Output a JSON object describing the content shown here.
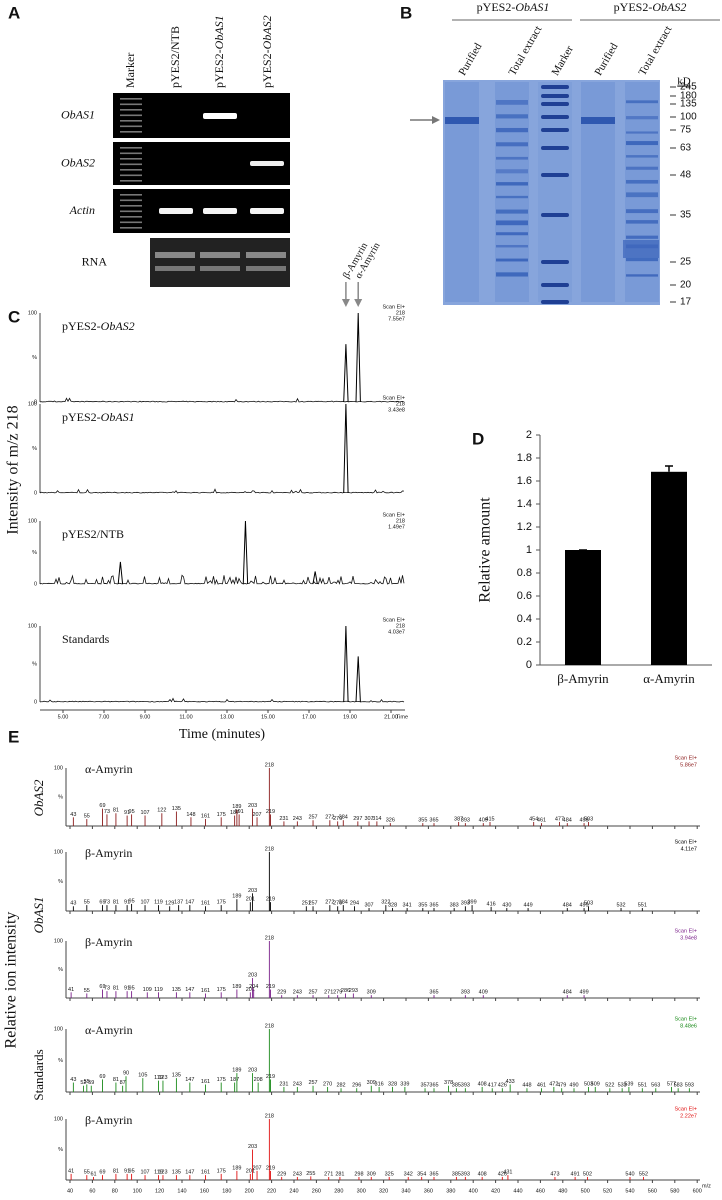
{
  "panel_a": {
    "letter": "A",
    "lanes": [
      [
        "Marker"
      ],
      [
        "pYES2/NTB"
      ],
      [
        "pYES2-",
        "ObAS1"
      ],
      [
        "pYES2-",
        "ObAS2"
      ]
    ],
    "rows": [
      "ObAS1",
      "ObAS2",
      "Actin",
      "RNA"
    ]
  },
  "panel_b": {
    "letter": "B",
    "groups": [
      [
        "pYES2-",
        "ObAS1"
      ],
      [
        "pYES2-",
        "ObAS2"
      ]
    ],
    "lanes": [
      "Purified",
      "Total extract",
      "Marker",
      "Purified",
      "Total extract"
    ],
    "unit": "kD",
    "sizes": [
      245,
      180,
      135,
      100,
      75,
      63,
      48,
      35,
      25,
      20,
      17
    ]
  },
  "panel_c": {
    "letter": "C",
    "y_label": "Intensity of m/z 218",
    "x_label": "Time (minutes)",
    "markers": [
      "β-Amyrin",
      "α-Amyrin"
    ],
    "xticks": [
      {
        "value": 5,
        "label": "5.00"
      },
      {
        "value": 7,
        "label": "7.00"
      },
      {
        "value": 9,
        "label": "9.00"
      },
      {
        "value": 11,
        "label": "11.00"
      },
      {
        "value": 13,
        "label": "13.00"
      },
      {
        "value": 15,
        "label": "15.00"
      },
      {
        "value": 17,
        "label": "17.00"
      },
      {
        "value": 19,
        "label": "19.00"
      },
      {
        "value": 21,
        "label": "21.00"
      }
    ],
    "x_end_label": "Time",
    "yticks": [
      0,
      100
    ],
    "y_mid_label": "%",
    "traces": [
      {
        "label": [
          "pYES2-",
          "ObAS2"
        ],
        "scan": "Scan EI+",
        "ion": 218,
        "scale": "7.55e7",
        "peaks": [
          [
            18.8,
            65
          ],
          [
            19.4,
            100
          ]
        ]
      },
      {
        "label": [
          "pYES2-",
          "ObAS1"
        ],
        "scan": "Scan EI+",
        "ion": 218,
        "scale": "3.43e8",
        "peaks": [
          [
            18.8,
            100
          ]
        ]
      },
      {
        "label": [
          "pYES2/NTB"
        ],
        "scan": "Scan EI+",
        "ion": 218,
        "scale": "1.49e7",
        "peaks": [
          [
            7.8,
            35
          ],
          [
            13.9,
            100
          ],
          [
            17.3,
            20
          ]
        ]
      },
      {
        "label": [
          "Standards"
        ],
        "scan": "Scan EI+",
        "ion": 218,
        "scale": "4.03e7",
        "peaks": [
          [
            18.8,
            100
          ],
          [
            19.4,
            60
          ]
        ]
      }
    ]
  },
  "chart_data": {
    "type": "bar",
    "letter": "D",
    "y_label": "Relative amount",
    "categories": [
      "β-Amyrin",
      "α-Amyrin"
    ],
    "values": [
      1,
      1.68
    ],
    "errors": [
      0,
      0.05
    ],
    "color": "#000000",
    "ylim": [
      0,
      2
    ],
    "yticks": [
      0,
      0.2,
      0.4,
      0.6,
      0.8,
      1,
      1.2,
      1.4,
      1.6,
      1.8,
      2
    ]
  },
  "panel_e": {
    "letter": "E",
    "y_label": "Relative ion intensity",
    "groups": [
      "ObAS2",
      "ObAS1",
      "Standards"
    ],
    "xticks": [
      40,
      60,
      80,
      100,
      120,
      140,
      160,
      180,
      200,
      220,
      240,
      260,
      280,
      300,
      320,
      340,
      360,
      380,
      400,
      420,
      440,
      460,
      480,
      500,
      520,
      540,
      560,
      580,
      600
    ],
    "x_end_label": "m/z",
    "yticks": [
      100
    ],
    "y_mid_label": "%",
    "spectra": [
      {
        "compound": "α-Amyrin",
        "scan": "Scan EI+",
        "scale": "5.86e7",
        "color": "#8b1a1a",
        "peaks": [
          [
            43,
            15
          ],
          [
            55,
            12
          ],
          [
            69,
            30
          ],
          [
            73,
            20
          ],
          [
            81,
            22
          ],
          [
            91,
            18
          ],
          [
            95,
            20
          ],
          [
            107,
            18
          ],
          [
            122,
            22
          ],
          [
            135,
            25
          ],
          [
            148,
            15
          ],
          [
            161,
            12
          ],
          [
            175,
            15
          ],
          [
            187,
            18
          ],
          [
            191,
            20
          ],
          [
            189,
            28
          ],
          [
            203,
            30
          ],
          [
            207,
            15
          ],
          [
            218,
            100
          ],
          [
            219,
            20
          ],
          [
            231,
            8
          ],
          [
            243,
            8
          ],
          [
            257,
            10
          ],
          [
            272,
            10
          ],
          [
            279,
            8
          ],
          [
            284,
            10
          ],
          [
            297,
            8
          ],
          [
            307,
            8
          ],
          [
            314,
            8
          ],
          [
            326,
            5
          ],
          [
            355,
            5
          ],
          [
            365,
            5
          ],
          [
            387,
            7
          ],
          [
            393,
            5
          ],
          [
            409,
            5
          ],
          [
            415,
            7
          ],
          [
            454,
            7
          ],
          [
            461,
            5
          ],
          [
            477,
            7
          ],
          [
            484,
            5
          ],
          [
            499,
            5
          ],
          [
            503,
            7
          ]
        ]
      },
      {
        "compound": "β-Amyrin",
        "scan": "Scan EI+",
        "scale": "4.11e7",
        "color": "#000000",
        "peaks": [
          [
            43,
            8
          ],
          [
            55,
            10
          ],
          [
            69,
            10
          ],
          [
            73,
            10
          ],
          [
            81,
            10
          ],
          [
            91,
            10
          ],
          [
            95,
            12
          ],
          [
            107,
            10
          ],
          [
            119,
            10
          ],
          [
            129,
            8
          ],
          [
            137,
            10
          ],
          [
            147,
            10
          ],
          [
            161,
            8
          ],
          [
            175,
            10
          ],
          [
            189,
            20
          ],
          [
            201,
            15
          ],
          [
            203,
            30
          ],
          [
            218,
            100
          ],
          [
            219,
            15
          ],
          [
            251,
            8
          ],
          [
            257,
            8
          ],
          [
            272,
            10
          ],
          [
            279,
            8
          ],
          [
            284,
            10
          ],
          [
            294,
            8
          ],
          [
            307,
            5
          ],
          [
            322,
            10
          ],
          [
            328,
            5
          ],
          [
            341,
            5
          ],
          [
            355,
            5
          ],
          [
            365,
            5
          ],
          [
            383,
            5
          ],
          [
            393,
            8
          ],
          [
            399,
            10
          ],
          [
            416,
            7
          ],
          [
            430,
            5
          ],
          [
            449,
            5
          ],
          [
            484,
            5
          ],
          [
            499,
            5
          ],
          [
            503,
            8
          ],
          [
            532,
            5
          ],
          [
            551,
            5
          ]
        ]
      },
      {
        "compound": "β-Amyrin",
        "scan": "Scan EI+",
        "scale": "3.94e8",
        "color": "#7a1f8a",
        "peaks": [
          [
            41,
            10
          ],
          [
            55,
            8
          ],
          [
            69,
            15
          ],
          [
            73,
            12
          ],
          [
            81,
            12
          ],
          [
            91,
            12
          ],
          [
            95,
            12
          ],
          [
            109,
            10
          ],
          [
            119,
            10
          ],
          [
            135,
            10
          ],
          [
            147,
            10
          ],
          [
            161,
            8
          ],
          [
            175,
            10
          ],
          [
            189,
            15
          ],
          [
            201,
            10
          ],
          [
            203,
            35
          ],
          [
            204,
            15
          ],
          [
            218,
            100
          ],
          [
            219,
            15
          ],
          [
            229,
            5
          ],
          [
            243,
            5
          ],
          [
            257,
            5
          ],
          [
            271,
            5
          ],
          [
            279,
            5
          ],
          [
            286,
            8
          ],
          [
            293,
            8
          ],
          [
            309,
            5
          ],
          [
            365,
            5
          ],
          [
            393,
            5
          ],
          [
            409,
            5
          ],
          [
            484,
            5
          ],
          [
            499,
            5
          ]
        ]
      },
      {
        "compound": "α-Amyrin",
        "scan": "Scan EI+",
        "scale": "8.48e6",
        "color": "#1a8a1a",
        "peaks": [
          [
            43,
            15
          ],
          [
            52,
            10
          ],
          [
            55,
            12
          ],
          [
            59,
            10
          ],
          [
            69,
            20
          ],
          [
            81,
            15
          ],
          [
            87,
            10
          ],
          [
            90,
            25
          ],
          [
            105,
            22
          ],
          [
            119,
            18
          ],
          [
            123,
            18
          ],
          [
            135,
            22
          ],
          [
            147,
            15
          ],
          [
            161,
            12
          ],
          [
            175,
            15
          ],
          [
            187,
            15
          ],
          [
            189,
            30
          ],
          [
            203,
            30
          ],
          [
            208,
            15
          ],
          [
            218,
            100
          ],
          [
            219,
            20
          ],
          [
            231,
            8
          ],
          [
            243,
            8
          ],
          [
            257,
            10
          ],
          [
            270,
            8
          ],
          [
            282,
            6
          ],
          [
            296,
            6
          ],
          [
            309,
            10
          ],
          [
            316,
            8
          ],
          [
            328,
            8
          ],
          [
            339,
            8
          ],
          [
            357,
            6
          ],
          [
            365,
            6
          ],
          [
            378,
            10
          ],
          [
            385,
            6
          ],
          [
            393,
            6
          ],
          [
            408,
            8
          ],
          [
            417,
            6
          ],
          [
            426,
            6
          ],
          [
            433,
            12
          ],
          [
            448,
            6
          ],
          [
            461,
            6
          ],
          [
            472,
            8
          ],
          [
            479,
            6
          ],
          [
            490,
            6
          ],
          [
            503,
            8
          ],
          [
            509,
            8
          ],
          [
            522,
            6
          ],
          [
            533,
            6
          ],
          [
            539,
            8
          ],
          [
            551,
            6
          ],
          [
            563,
            6
          ],
          [
            577,
            8
          ],
          [
            583,
            6
          ],
          [
            593,
            6
          ]
        ]
      },
      {
        "compound": "β-Amyrin",
        "scan": "Scan EI+",
        "scale": "2.22e7",
        "color": "#e01010",
        "peaks": [
          [
            41,
            10
          ],
          [
            55,
            8
          ],
          [
            61,
            5
          ],
          [
            69,
            8
          ],
          [
            81,
            10
          ],
          [
            91,
            10
          ],
          [
            95,
            10
          ],
          [
            107,
            8
          ],
          [
            119,
            8
          ],
          [
            123,
            8
          ],
          [
            135,
            8
          ],
          [
            147,
            8
          ],
          [
            161,
            8
          ],
          [
            175,
            10
          ],
          [
            189,
            15
          ],
          [
            201,
            10
          ],
          [
            203,
            50
          ],
          [
            207,
            15
          ],
          [
            218,
            100
          ],
          [
            219,
            15
          ],
          [
            229,
            5
          ],
          [
            243,
            5
          ],
          [
            255,
            6
          ],
          [
            271,
            5
          ],
          [
            281,
            5
          ],
          [
            298,
            5
          ],
          [
            309,
            5
          ],
          [
            325,
            5
          ],
          [
            342,
            5
          ],
          [
            354,
            5
          ],
          [
            365,
            5
          ],
          [
            385,
            5
          ],
          [
            393,
            5
          ],
          [
            408,
            5
          ],
          [
            426,
            5
          ],
          [
            431,
            8
          ],
          [
            473,
            5
          ],
          [
            491,
            5
          ],
          [
            502,
            5
          ],
          [
            540,
            5
          ],
          [
            552,
            5
          ]
        ]
      }
    ]
  }
}
